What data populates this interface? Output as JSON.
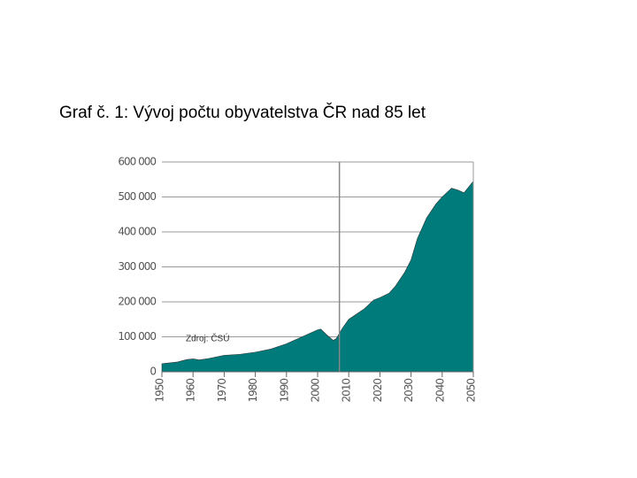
{
  "chart_data": {
    "type": "area",
    "title": "Graf č. 1: Vývoj počtu obyvatelstva ČR nad 85 let",
    "annotation": "Zdroj: ČSÚ",
    "x": [
      1950,
      1955,
      1958,
      1960,
      1962,
      1965,
      1970,
      1975,
      1980,
      1985,
      1990,
      1995,
      2000,
      2001,
      2003,
      2005,
      2006,
      2008,
      2010,
      2015,
      2018,
      2020,
      2023,
      2025,
      2028,
      2030,
      2032,
      2035,
      2038,
      2040,
      2043,
      2045,
      2047,
      2050
    ],
    "values": [
      23000,
      28000,
      35000,
      37000,
      34000,
      38000,
      47000,
      50000,
      56000,
      65000,
      80000,
      100000,
      120000,
      122000,
      105000,
      90000,
      95000,
      125000,
      150000,
      180000,
      205000,
      212000,
      225000,
      245000,
      285000,
      320000,
      380000,
      440000,
      480000,
      500000,
      525000,
      520000,
      512000,
      545000
    ],
    "color": "#007b7b",
    "reference_x": 2007,
    "xlim": [
      1950,
      2050
    ],
    "xticks": [
      1950,
      1960,
      1970,
      1980,
      1990,
      2000,
      2010,
      2020,
      2030,
      2040,
      2050
    ],
    "ylim": [
      0,
      600000
    ],
    "yticks": [
      0,
      {
        "value": 100000,
        "label": "100 000"
      },
      {
        "value": 200000,
        "label": "200 000"
      },
      {
        "value": 300000,
        "label": "300 000"
      },
      {
        "value": 400000,
        "label": "400 000"
      },
      {
        "value": 500000,
        "label": "500 000"
      },
      {
        "value": 600000,
        "label": "600 000"
      }
    ],
    "grid": true
  }
}
